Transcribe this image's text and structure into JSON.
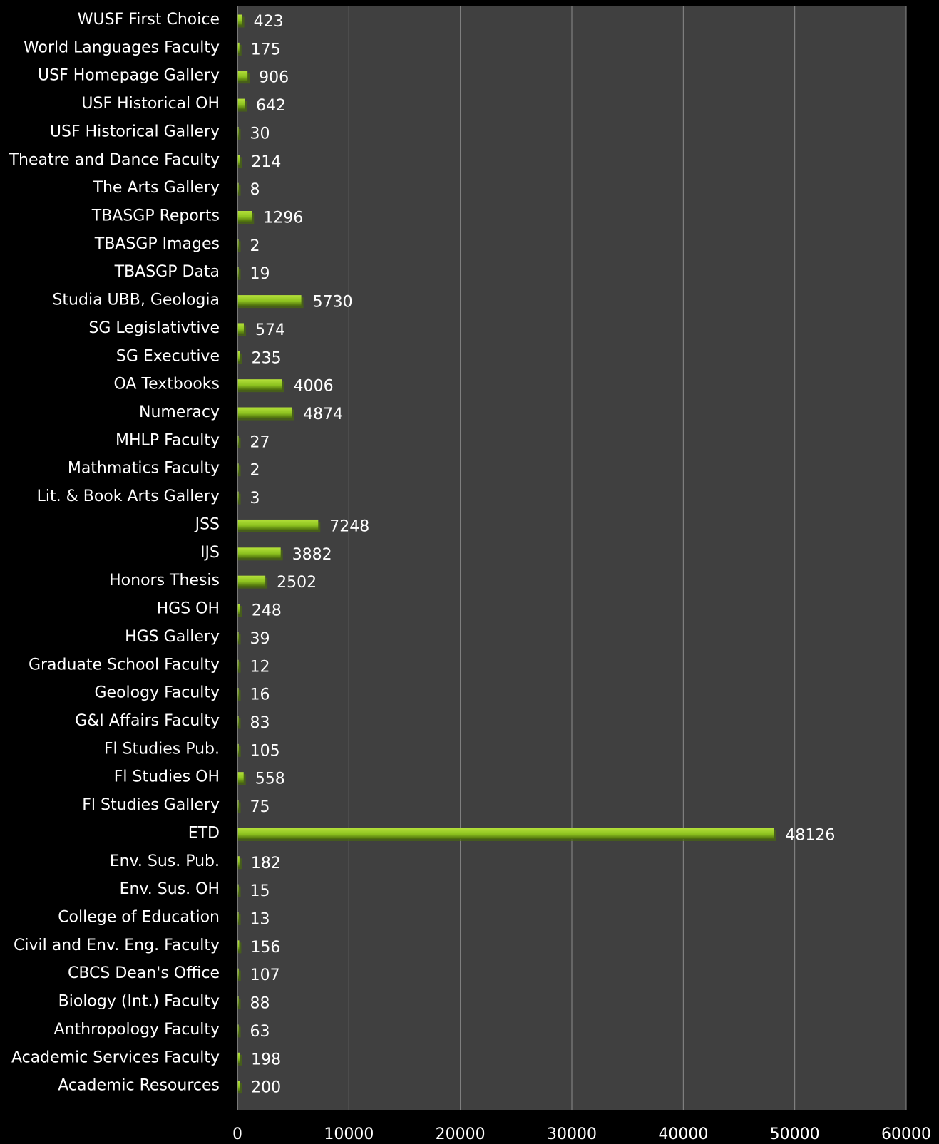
{
  "colors": {
    "background": "#000000",
    "plot_area": "#404040",
    "gridline": "#8c8c8c",
    "bar_fill": "#8dc21f",
    "bar_shadow": "#4a6b0c",
    "text": "#ffffff"
  },
  "chart_data": {
    "type": "bar",
    "orientation": "horizontal",
    "title": "",
    "xlabel": "",
    "ylabel": "",
    "xlim": [
      0,
      60000
    ],
    "x_ticks": [
      0,
      10000,
      20000,
      30000,
      40000,
      50000,
      60000
    ],
    "grid": "vertical",
    "legend": "none",
    "categories": [
      "WUSF First Choice",
      "World Languages Faculty",
      "USF Homepage Gallery",
      "USF Historical OH",
      "USF Historical Gallery",
      "Theatre and Dance Faculty",
      "The Arts Gallery",
      "TBASGP Reports",
      "TBASGP Images",
      "TBASGP Data",
      "Studia UBB, Geologia",
      "SG Legislativtive",
      "SG Executive",
      "OA Textbooks",
      "Numeracy",
      "MHLP Faculty",
      "Mathmatics Faculty",
      "Lit. & Book Arts Gallery",
      "JSS",
      "IJS",
      "Honors Thesis",
      "HGS OH",
      "HGS Gallery",
      "Graduate School Faculty",
      "Geology Faculty",
      "G&I Affairs Faculty",
      "Fl Studies Pub.",
      "Fl Studies OH",
      "Fl Studies Gallery",
      "ETD",
      "Env. Sus. Pub.",
      "Env. Sus. OH",
      "College of Education",
      "Civil and Env. Eng. Faculty",
      "CBCS Dean's Office",
      "Biology (Int.) Faculty",
      "Anthropology Faculty",
      "Academic Services Faculty",
      "Academic Resources"
    ],
    "values": [
      423,
      175,
      906,
      642,
      30,
      214,
      8,
      1296,
      2,
      19,
      5730,
      574,
      235,
      4006,
      4874,
      27,
      2,
      3,
      7248,
      3882,
      2502,
      248,
      39,
      12,
      16,
      83,
      105,
      558,
      75,
      48126,
      182,
      15,
      13,
      156,
      107,
      88,
      63,
      198,
      200
    ]
  }
}
